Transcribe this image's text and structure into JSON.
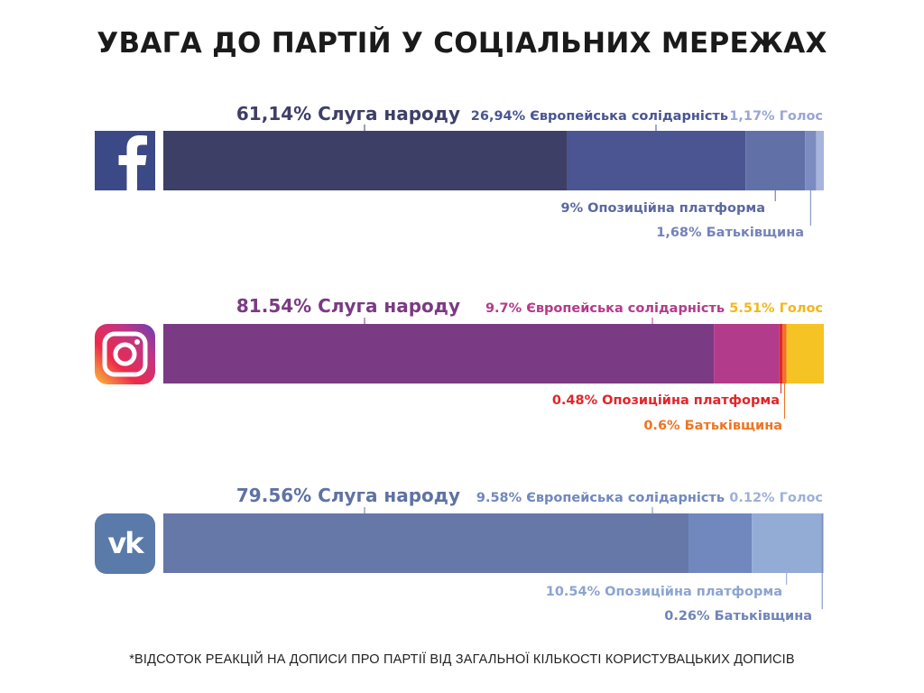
{
  "title": "УВАГА ДО ПАРТІЙ У СОЦІАЛЬНИХ МЕРЕЖАХ",
  "footnote": "*ВІДСОТОК РЕАКЦІЙ НА ДОПИСИ ПРО ПАРТІЇ ВІД ЗАГАЛЬНОЇ КІЛЬКОСТІ КОРИСТУВАЦЬКИХ ДОПИСІВ",
  "platforms": [
    {
      "name": "facebook",
      "icon": "facebook-icon",
      "icon_color": "#3b4a86"
    },
    {
      "name": "instagram",
      "icon": "instagram-icon",
      "icon_color": "#c13584"
    },
    {
      "name": "vk",
      "icon": "vk-icon",
      "icon_color": "#5a7aaa"
    }
  ],
  "chart_data": {
    "type": "bar",
    "orientation": "horizontal-stacked",
    "categories": [
      "Facebook",
      "Instagram",
      "VK"
    ],
    "series": [
      {
        "platform": "Facebook",
        "segments": [
          {
            "value": 61.14,
            "label": "61,14% Слуга народу",
            "color": "#3d3f67",
            "label_color": "#3d3f67",
            "position": "top"
          },
          {
            "value": 26.94,
            "label": "26,94% Європейська солідарність",
            "color": "#4a5591",
            "label_color": "#4a5591",
            "position": "top"
          },
          {
            "value": 9,
            "label": "9% Опозиційна платформа",
            "color": "#6171a7",
            "label_color": "#5a69a0",
            "position": "bottom"
          },
          {
            "value": 1.68,
            "label": "1,68% Батьківщина",
            "color": "#7d8cc0",
            "label_color": "#7483b8",
            "position": "bottom"
          },
          {
            "value": 1.17,
            "label": "1,17% Голос",
            "color": "#a9b4dc",
            "label_color": "#9aa6d4",
            "position": "top"
          }
        ]
      },
      {
        "platform": "Instagram",
        "segments": [
          {
            "value": 81.54,
            "label": "81.54% Слуга народу",
            "color": "#7b3a84",
            "label_color": "#7b3a84",
            "position": "top"
          },
          {
            "value": 9.7,
            "label": "9.7% Європейська солідарність",
            "color": "#b33b8b",
            "label_color": "#b33b8b",
            "position": "top"
          },
          {
            "value": 0.48,
            "label": "0.48% Опозиційна платформа",
            "color": "#e0262a",
            "label_color": "#e0262a",
            "position": "bottom"
          },
          {
            "value": 0.6,
            "label": "0.6% Батьківщина",
            "color": "#f07421",
            "label_color": "#f07421",
            "position": "bottom"
          },
          {
            "value": 5.51,
            "label": "5.51% Голос",
            "color": "#f6c324",
            "label_color": "#f3b71c",
            "position": "top"
          }
        ]
      },
      {
        "platform": "VK",
        "segments": [
          {
            "value": 79.56,
            "label": "79.56% Слуга народу",
            "color": "#6578a8",
            "label_color": "#5f72a4",
            "position": "top"
          },
          {
            "value": 9.58,
            "label": "9.58% Європейська солідарність",
            "color": "#7088be",
            "label_color": "#7088be",
            "position": "top"
          },
          {
            "value": 10.54,
            "label": "10.54% Опозиційна платформа",
            "color": "#93acd6",
            "label_color": "#8ca4d0",
            "position": "bottom"
          },
          {
            "value": 0.26,
            "label": "0.26% Батьківщина",
            "color": "#7c8fbd",
            "label_color": "#6f84b8",
            "position": "bottom"
          },
          {
            "value": 0.12,
            "label": "0.12% Голос",
            "color": "#b9c7e3",
            "label_color": "#9fb0d8",
            "position": "top"
          }
        ]
      }
    ]
  }
}
